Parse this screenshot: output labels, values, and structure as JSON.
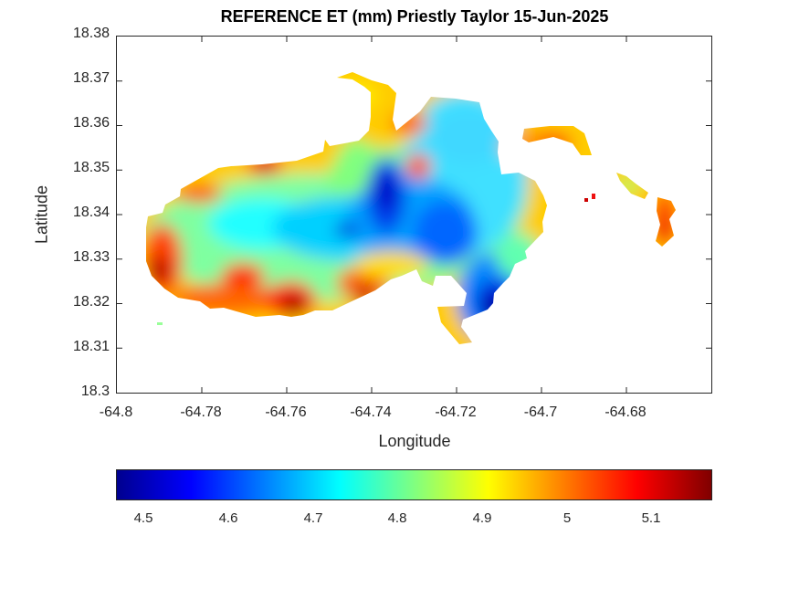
{
  "title": "REFERENCE ET (mm) Priestly Taylor 15-Jun-2025",
  "xlabel": "Longitude",
  "ylabel": "Latitude",
  "xticks": [
    "-64.8",
    "-64.78",
    "-64.76",
    "-64.74",
    "-64.72",
    "-64.7",
    "-64.68",
    "-64.66"
  ],
  "yticks": [
    "18.38",
    "18.37",
    "18.36",
    "18.35",
    "18.34",
    "18.33",
    "18.32",
    "18.31",
    "18.3"
  ],
  "colorbar": {
    "ticks": [
      "4.5",
      "4.6",
      "4.7",
      "4.8",
      "4.9",
      "5",
      "5.1"
    ],
    "colormap": "jet",
    "colors": [
      "#00008f",
      "#0000ff",
      "#0080ff",
      "#00ffff",
      "#80ff80",
      "#ffff00",
      "#ff8000",
      "#ff0000",
      "#800000"
    ]
  },
  "chart_data": {
    "type": "heatmap",
    "title": "REFERENCE ET (mm) Priestly Taylor 15-Jun-2025",
    "xlabel": "Longitude",
    "ylabel": "Latitude",
    "xlim": [
      -64.8,
      -64.66
    ],
    "ylim": [
      18.3,
      18.38
    ],
    "clim": [
      4.47,
      5.17
    ],
    "colormap": "jet",
    "grid": false,
    "hotspots": [
      {
        "lon": -64.79,
        "lat": 18.327,
        "value": 5.15
      },
      {
        "lon": -64.758,
        "lat": 18.319,
        "value": 5.15
      },
      {
        "lon": -64.766,
        "lat": 18.35,
        "value": 5.1
      },
      {
        "lon": -64.735,
        "lat": 18.346,
        "value": 4.5
      },
      {
        "lon": -64.711,
        "lat": 18.319,
        "value": 4.47
      },
      {
        "lon": -64.745,
        "lat": 18.336,
        "value": 4.6
      },
      {
        "lon": -64.728,
        "lat": 18.334,
        "value": 4.6
      },
      {
        "lon": -64.671,
        "lat": 18.337,
        "value": 5.05
      },
      {
        "lon": -64.727,
        "lat": 18.363,
        "value": 5.05
      }
    ]
  }
}
